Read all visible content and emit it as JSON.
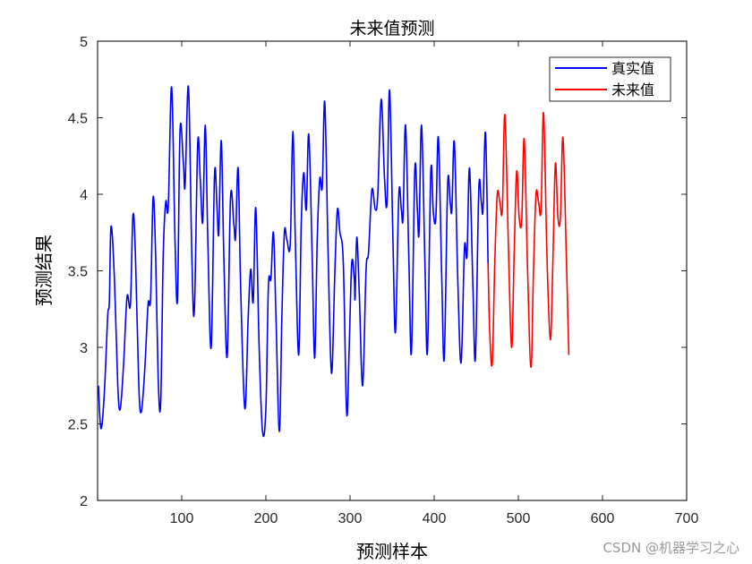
{
  "chart_data": {
    "type": "line",
    "title": "未来值预测",
    "xlabel": "预测样本",
    "ylabel": "预测结果",
    "xlim": [
      0,
      700
    ],
    "ylim": [
      2,
      5
    ],
    "xticks": [
      100,
      200,
      300,
      400,
      500,
      600,
      700
    ],
    "yticks": [
      2,
      2.5,
      3,
      3.5,
      4,
      4.5,
      5
    ],
    "ytick_labels": [
      "2",
      "2.5",
      "3",
      "3.5",
      "4",
      "4.5",
      "5"
    ],
    "legend_position": "top-right",
    "series": [
      {
        "name": "真实值",
        "color": "#0000ff",
        "keypoints": [
          [
            1,
            2.75
          ],
          [
            4,
            2.47
          ],
          [
            8,
            2.7
          ],
          [
            12,
            3.2
          ],
          [
            14,
            3.3
          ],
          [
            16,
            3.79
          ],
          [
            20,
            3.45
          ],
          [
            24,
            2.75
          ],
          [
            27,
            2.6
          ],
          [
            31,
            2.9
          ],
          [
            35,
            3.33
          ],
          [
            39,
            3.28
          ],
          [
            42,
            3.86
          ],
          [
            45,
            3.6
          ],
          [
            49,
            2.75
          ],
          [
            52,
            2.58
          ],
          [
            56,
            2.85
          ],
          [
            60,
            3.28
          ],
          [
            63,
            3.32
          ],
          [
            66,
            3.98
          ],
          [
            69,
            3.6
          ],
          [
            72,
            2.8
          ],
          [
            75,
            2.64
          ],
          [
            78,
            3.6
          ],
          [
            81,
            3.95
          ],
          [
            84,
            3.92
          ],
          [
            88,
            4.7
          ],
          [
            92,
            3.7
          ],
          [
            95,
            3.32
          ],
          [
            98,
            4.42
          ],
          [
            102,
            4.2
          ],
          [
            104,
            4.06
          ],
          [
            108,
            4.7
          ],
          [
            112,
            3.6
          ],
          [
            115,
            3.24
          ],
          [
            119,
            4.33
          ],
          [
            122,
            4.1
          ],
          [
            125,
            3.82
          ],
          [
            128,
            4.45
          ],
          [
            131,
            3.7
          ],
          [
            135,
            3.0
          ],
          [
            139,
            4.13
          ],
          [
            142,
            3.9
          ],
          [
            144,
            3.75
          ],
          [
            147,
            4.35
          ],
          [
            150,
            3.6
          ],
          [
            154,
            2.94
          ],
          [
            158,
            3.98
          ],
          [
            162,
            3.8
          ],
          [
            164,
            3.72
          ],
          [
            167,
            4.17
          ],
          [
            170,
            3.4
          ],
          [
            175,
            2.6
          ],
          [
            179,
            3.2
          ],
          [
            182,
            3.51
          ],
          [
            185,
            3.3
          ],
          [
            188,
            3.91
          ],
          [
            192,
            3.0
          ],
          [
            196,
            2.45
          ],
          [
            200,
            2.6
          ],
          [
            203,
            3.4
          ],
          [
            206,
            3.45
          ],
          [
            209,
            3.75
          ],
          [
            212,
            3.2
          ],
          [
            216,
            2.45
          ],
          [
            219,
            3.2
          ],
          [
            222,
            3.75
          ],
          [
            225,
            3.7
          ],
          [
            229,
            3.68
          ],
          [
            232,
            4.41
          ],
          [
            235,
            3.7
          ],
          [
            239,
            2.95
          ],
          [
            242,
            3.8
          ],
          [
            245,
            4.14
          ],
          [
            248,
            3.9
          ],
          [
            251,
            4.39
          ],
          [
            255,
            3.6
          ],
          [
            258,
            2.93
          ],
          [
            261,
            3.7
          ],
          [
            264,
            4.1
          ],
          [
            267,
            4.05
          ],
          [
            270,
            4.6
          ],
          [
            274,
            3.6
          ],
          [
            278,
            2.83
          ],
          [
            282,
            3.5
          ],
          [
            285,
            3.9
          ],
          [
            288,
            3.75
          ],
          [
            292,
            3.55
          ],
          [
            296,
            2.57
          ],
          [
            299,
            3.0
          ],
          [
            302,
            3.55
          ],
          [
            305,
            3.45
          ],
          [
            306,
            3.32
          ],
          [
            308,
            3.72
          ],
          [
            311,
            3.35
          ],
          [
            315,
            2.75
          ],
          [
            319,
            3.5
          ],
          [
            322,
            3.62
          ],
          [
            326,
            4.03
          ],
          [
            330,
            3.9
          ],
          [
            333,
            4.0
          ],
          [
            337,
            4.62
          ],
          [
            341,
            4.1
          ],
          [
            344,
            3.95
          ],
          [
            347,
            4.68
          ],
          [
            351,
            3.7
          ],
          [
            354,
            3.1
          ],
          [
            358,
            4.0
          ],
          [
            361,
            3.9
          ],
          [
            363,
            3.85
          ],
          [
            366,
            4.45
          ],
          [
            370,
            3.55
          ],
          [
            373,
            2.97
          ],
          [
            377,
            4.16
          ],
          [
            380,
            3.9
          ],
          [
            382,
            3.75
          ],
          [
            385,
            4.45
          ],
          [
            389,
            3.55
          ],
          [
            392,
            2.97
          ],
          [
            396,
            4.15
          ],
          [
            399,
            3.88
          ],
          [
            402,
            3.85
          ],
          [
            405,
            4.37
          ],
          [
            409,
            3.45
          ],
          [
            412,
            2.93
          ],
          [
            416,
            4.06
          ],
          [
            419,
            3.95
          ],
          [
            421,
            3.9
          ],
          [
            424,
            4.34
          ],
          [
            428,
            3.45
          ],
          [
            432,
            2.9
          ],
          [
            436,
            3.65
          ],
          [
            439,
            3.6
          ],
          [
            442,
            4.17
          ],
          [
            446,
            3.4
          ],
          [
            449,
            2.93
          ],
          [
            453,
            4.03
          ],
          [
            456,
            3.95
          ],
          [
            458,
            3.9
          ],
          [
            461,
            4.4
          ],
          [
            464,
            3.55
          ]
        ]
      },
      {
        "name": "未来值",
        "color": "#ff0000",
        "keypoints": [
          [
            464,
            3.55
          ],
          [
            466,
            3.1
          ],
          [
            469,
            2.9
          ],
          [
            472,
            3.55
          ],
          [
            475,
            4.0
          ],
          [
            478,
            3.95
          ],
          [
            481,
            3.9
          ],
          [
            484,
            4.52
          ],
          [
            488,
            3.7
          ],
          [
            492,
            3.0
          ],
          [
            495,
            3.6
          ],
          [
            498,
            4.15
          ],
          [
            501,
            3.85
          ],
          [
            504,
            3.83
          ],
          [
            507,
            4.36
          ],
          [
            511,
            3.5
          ],
          [
            515,
            2.87
          ],
          [
            518,
            3.5
          ],
          [
            521,
            4.0
          ],
          [
            524,
            3.95
          ],
          [
            527,
            3.9
          ],
          [
            530,
            4.53
          ],
          [
            534,
            3.6
          ],
          [
            538,
            3.05
          ],
          [
            541,
            3.55
          ],
          [
            544,
            4.2
          ],
          [
            547,
            3.85
          ],
          [
            550,
            3.85
          ],
          [
            553,
            4.37
          ],
          [
            557,
            3.6
          ],
          [
            560,
            2.95
          ]
        ]
      }
    ]
  },
  "watermark": "CSDN @机器学习之心"
}
